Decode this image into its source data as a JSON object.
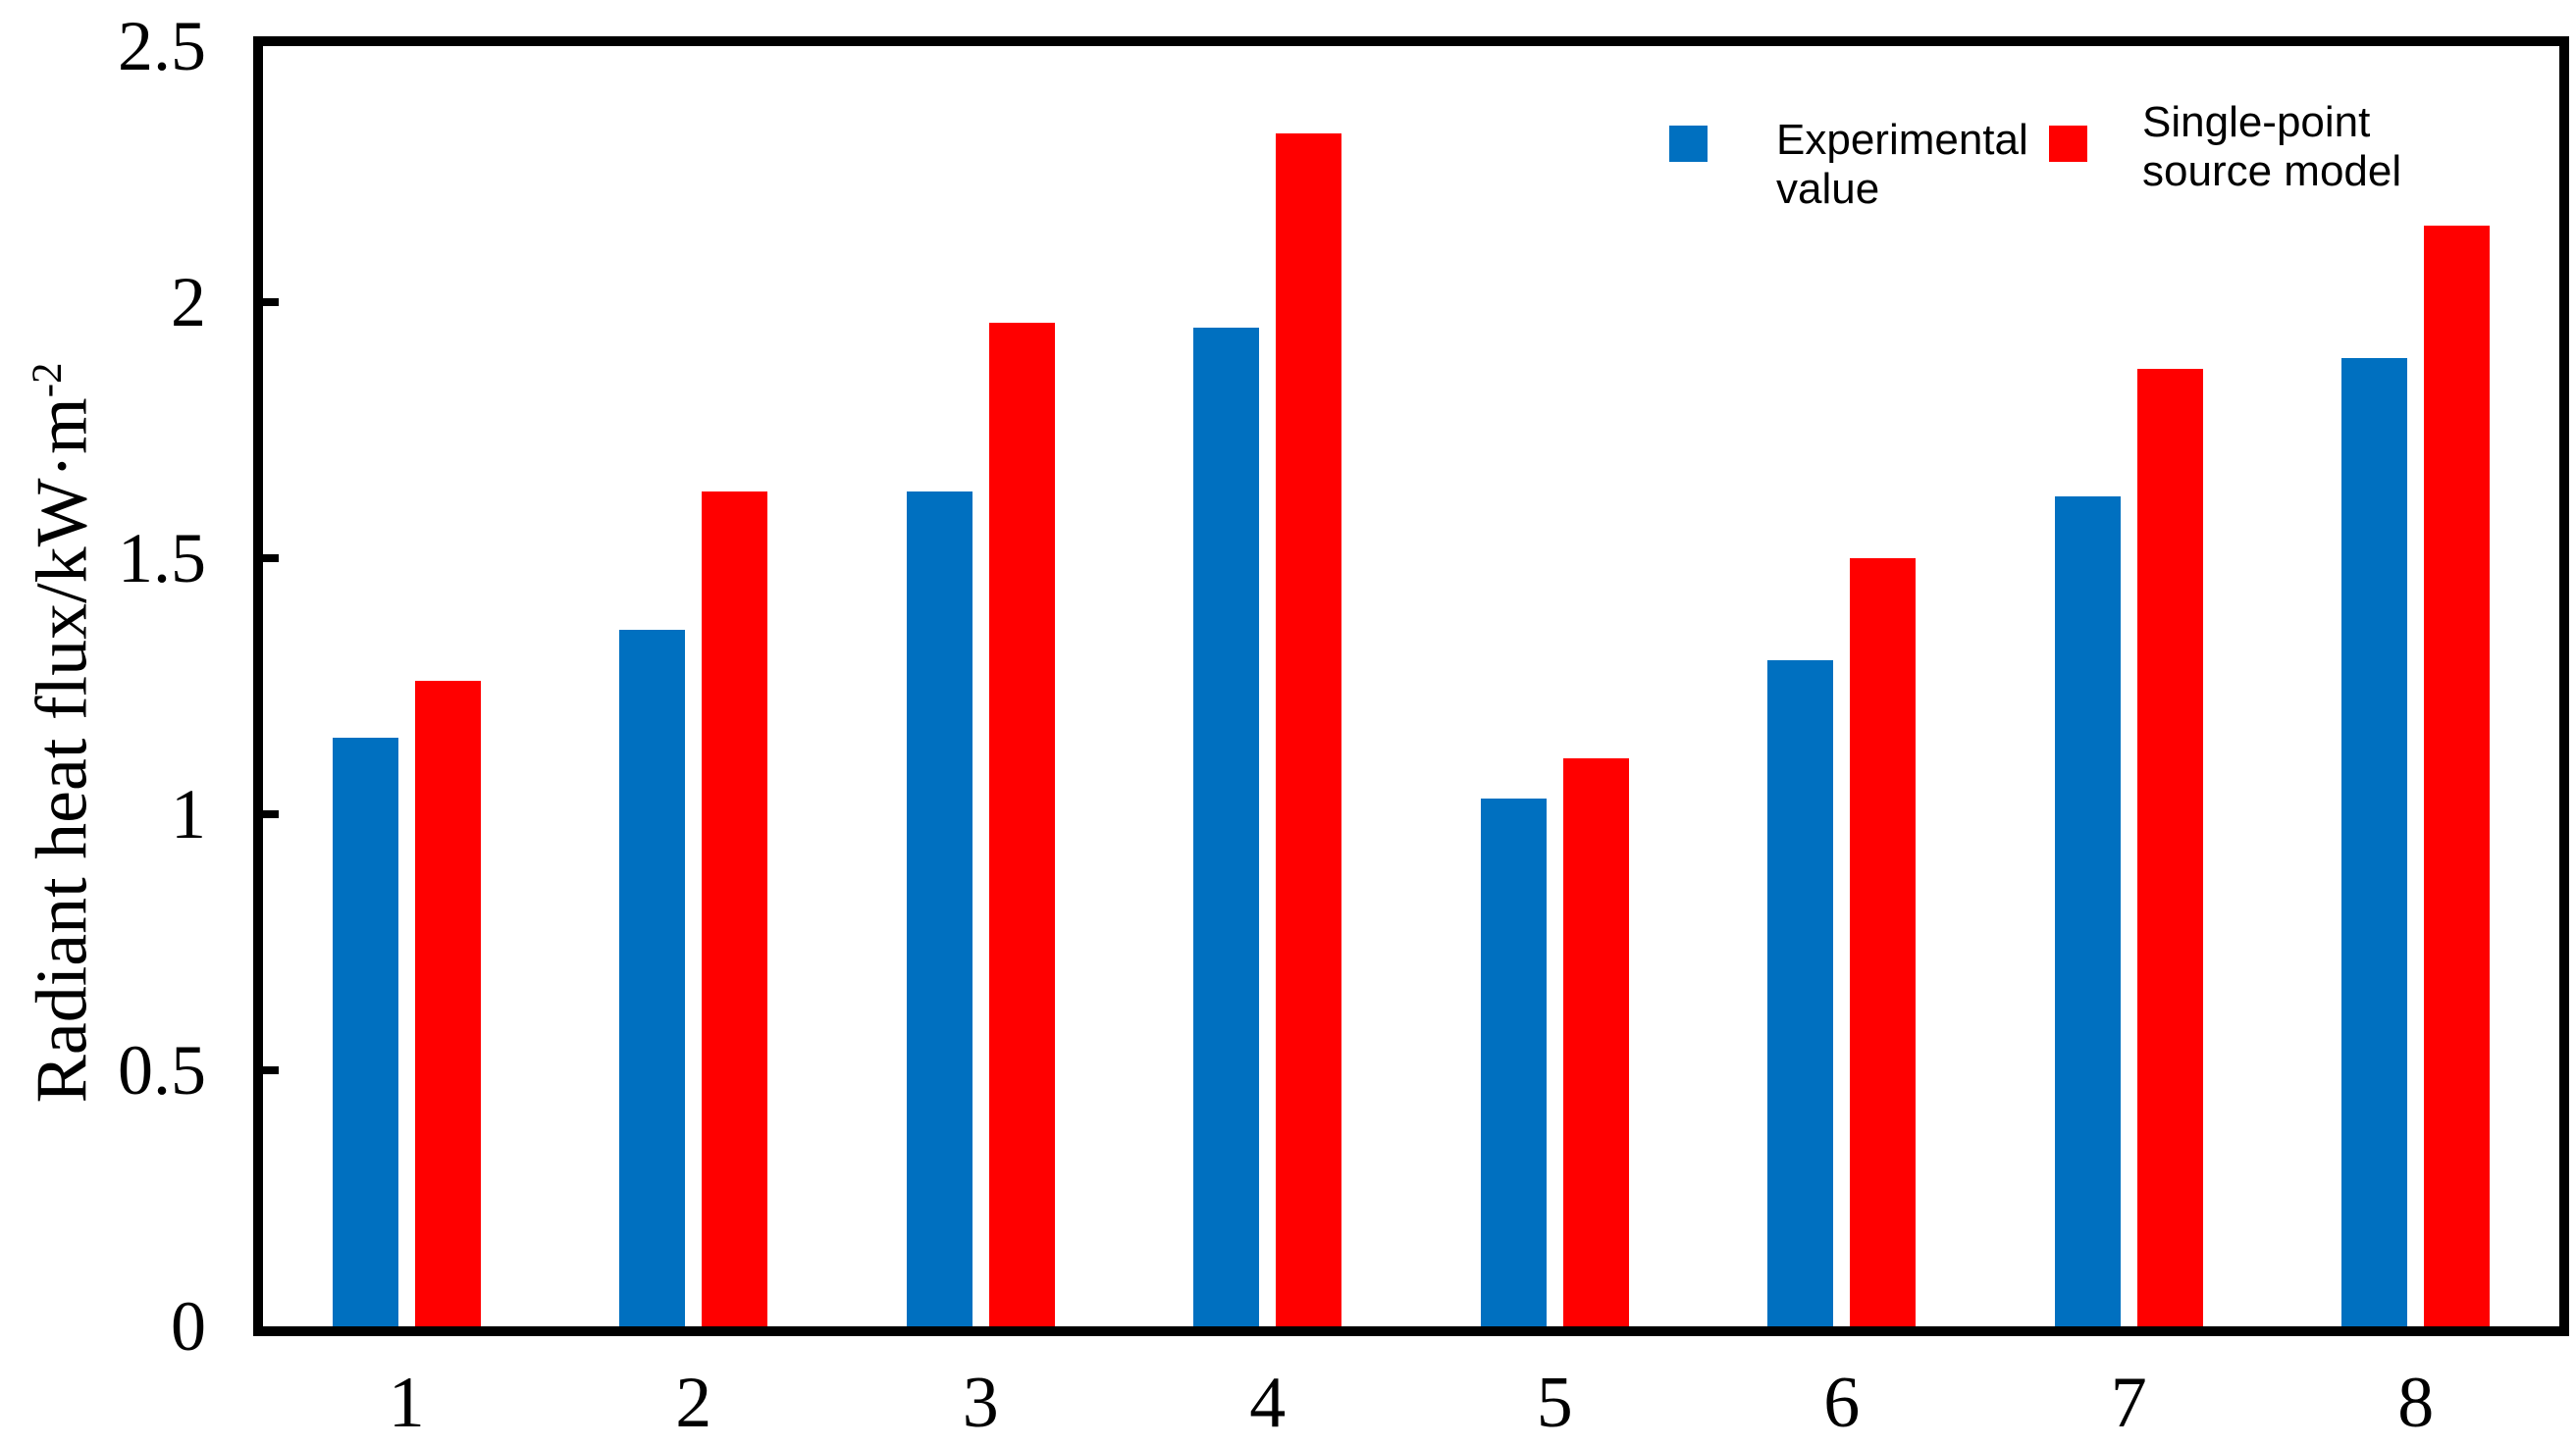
{
  "chart_data": {
    "type": "bar",
    "categories": [
      "1",
      "2",
      "3",
      "4",
      "5",
      "6",
      "7",
      "8"
    ],
    "series": [
      {
        "name": "Experimental value",
        "color": "#0070C0",
        "values": [
          1.15,
          1.36,
          1.63,
          1.95,
          1.03,
          1.3,
          1.62,
          1.89
        ]
      },
      {
        "name": "Single-point source model",
        "color": "#FF0000",
        "values": [
          1.26,
          1.63,
          1.96,
          2.33,
          1.11,
          1.5,
          1.87,
          2.15
        ]
      }
    ],
    "title": "",
    "xlabel": "",
    "ylabel": "Radiant heat flux/kW·m⁻²",
    "ylim": [
      0,
      2.5
    ],
    "yticks": [
      0,
      0.5,
      1,
      1.5,
      2,
      2.5
    ],
    "ytick_labels": [
      "0",
      "0.5",
      "1",
      "1.5",
      "2",
      "2.5"
    ],
    "grid": false,
    "legend_position": "top-right-inside"
  },
  "axis": {
    "ylabel_main": "Radiant heat flux/kW·m",
    "ylabel_sup": "-2"
  },
  "legend": {
    "items": [
      {
        "label": "Experimental value",
        "color": "#0070C0"
      },
      {
        "label": "Single-point source model",
        "color": "#FF0000"
      }
    ]
  },
  "colors": {
    "experimental_blue": "#0070C0",
    "model_red": "#FF0000",
    "axis_black": "#000000",
    "background": "#FFFFFF"
  }
}
